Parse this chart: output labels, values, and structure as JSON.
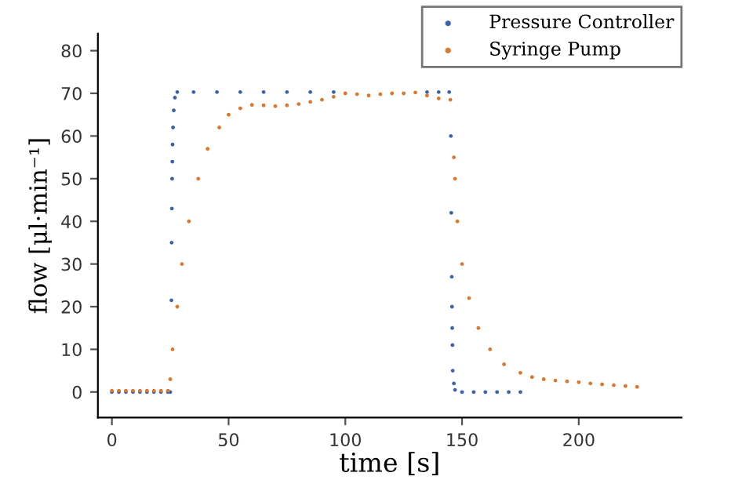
{
  "chart_data": {
    "type": "scatter",
    "xlabel": "time [s]",
    "ylabel": "flow [μl·min⁻¹]",
    "xlim": [
      -6,
      244
    ],
    "ylim": [
      -6,
      84
    ],
    "xticks": [
      0,
      50,
      100,
      150,
      200
    ],
    "yticks": [
      0,
      10,
      20,
      30,
      40,
      50,
      60,
      70,
      80
    ],
    "grid": false,
    "legend": "top right",
    "marker": "circle",
    "series": [
      {
        "name": "Pressure Controller",
        "color": "#3b63ad",
        "x": [
          0,
          3,
          6,
          9,
          12,
          15,
          18,
          21,
          24,
          25,
          25.5,
          25.6,
          25.7,
          25.8,
          25.9,
          26,
          26.2,
          26.5,
          27,
          28,
          35,
          45,
          55,
          65,
          75,
          85,
          95,
          135,
          140,
          144.5,
          145.2,
          145.4,
          145.6,
          145.7,
          145.8,
          145.9,
          146,
          146.5,
          147,
          150,
          155,
          160,
          165,
          170,
          175
        ],
        "values": [
          0,
          0,
          0,
          0,
          0,
          0,
          0,
          0,
          0,
          0,
          21.5,
          35,
          43,
          50,
          54,
          58,
          62,
          66,
          69,
          70.3,
          70.3,
          70.3,
          70.3,
          70.3,
          70.3,
          70.3,
          70.3,
          70.3,
          70.3,
          70.3,
          60,
          42,
          27,
          20,
          15,
          11,
          5,
          2,
          0.5,
          0,
          0,
          0,
          0,
          0,
          0
        ]
      },
      {
        "name": "Syringe Pump",
        "color": "#d9782f",
        "x": [
          0,
          3,
          6,
          9,
          12,
          15,
          18,
          21,
          24,
          25,
          26,
          28,
          30,
          33,
          37,
          41,
          46,
          50,
          55,
          60,
          65,
          70,
          75,
          80,
          85,
          90,
          95,
          100,
          105,
          110,
          115,
          120,
          125,
          130,
          135,
          140,
          145,
          146.5,
          147,
          148,
          150,
          153,
          157,
          162,
          168,
          175,
          180,
          185,
          190,
          195,
          200,
          205,
          210,
          215,
          220,
          225
        ],
        "values": [
          0.3,
          0.3,
          0.3,
          0.3,
          0.3,
          0.3,
          0.3,
          0.3,
          0.3,
          3,
          10,
          20,
          30,
          40,
          50,
          57,
          62,
          65,
          66.5,
          67.3,
          67.2,
          67,
          67.2,
          67.5,
          68,
          68.5,
          69.2,
          70,
          69.8,
          69.5,
          69.8,
          70,
          70,
          70.2,
          69.5,
          68.8,
          68.5,
          55,
          50,
          40,
          30,
          22,
          15,
          10,
          6.5,
          4.5,
          3.5,
          3,
          2.7,
          2.5,
          2.3,
          2,
          1.8,
          1.6,
          1.4,
          1.2
        ]
      }
    ]
  }
}
